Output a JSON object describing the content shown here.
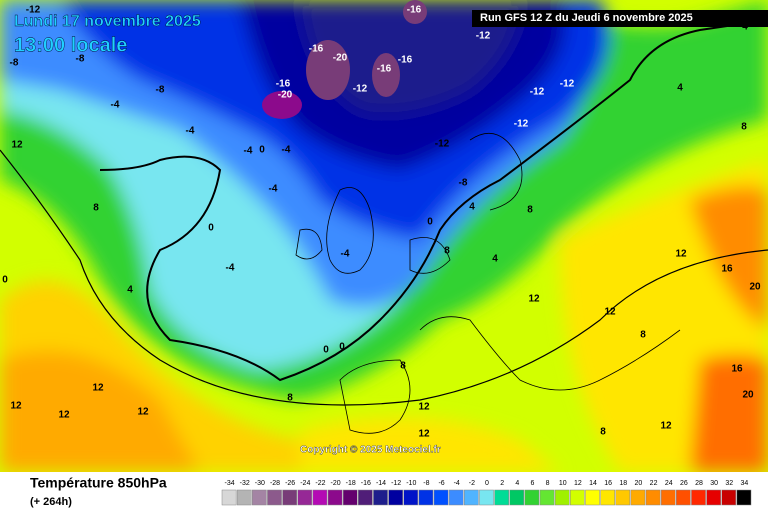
{
  "header": {
    "date": "Lundi 17 novembre 2025",
    "time": "13:00 locale",
    "run": "Run GFS 12 Z du Jeudi 6 novembre 2025"
  },
  "footer": {
    "title": "Température 850hPa",
    "lead": "(+ 264h)",
    "copyright": "Copyright © 2025 Meteociel.fr"
  },
  "legend": {
    "values": [
      -34,
      -32,
      -30,
      -28,
      -26,
      -24,
      -22,
      -20,
      -18,
      -16,
      -14,
      -12,
      -10,
      -8,
      -6,
      -4,
      -2,
      0,
      2,
      4,
      6,
      8,
      10,
      12,
      14,
      16,
      18,
      20,
      22,
      24,
      26,
      28,
      30,
      32,
      34
    ],
    "colors": [
      "#d7d7d7",
      "#b4b4b4",
      "#a484a4",
      "#8c5a8c",
      "#783c78",
      "#962896",
      "#b40ab4",
      "#8c0a8c",
      "#64006e",
      "#501e78",
      "#1e1e8c",
      "#0000a0",
      "#0014c8",
      "#0032e6",
      "#0050ff",
      "#3c8cff",
      "#50b4ff",
      "#78e6f0",
      "#00dc96",
      "#00c864",
      "#32d232",
      "#64e632",
      "#a0f000",
      "#d2ff00",
      "#ffff00",
      "#ffe600",
      "#ffc800",
      "#ffaa00",
      "#ff8c00",
      "#ff6e00",
      "#ff5000",
      "#ff2800",
      "#e60000",
      "#c80000",
      "#000000"
    ]
  },
  "map_labels": [
    "-8",
    "-8",
    "-4",
    "-4",
    "-4",
    "0",
    "-4",
    "-4",
    "0",
    "-4",
    "-4",
    "0",
    "0",
    "-16",
    "-20",
    "-16",
    "-20",
    "-16",
    "-16",
    "-16",
    "-12",
    "-12",
    "-12",
    "-12",
    "-12",
    "-12",
    "-8",
    "0",
    "4",
    "8",
    "4",
    "8",
    "12",
    "12",
    "8",
    "12",
    "16",
    "20",
    "16",
    "20",
    "8",
    "12",
    "8",
    "4",
    "0",
    "12",
    "12",
    "12",
    "12",
    "8",
    "8",
    "12",
    "12",
    "8",
    "12",
    "4",
    "4",
    "-8",
    "-12"
  ]
}
